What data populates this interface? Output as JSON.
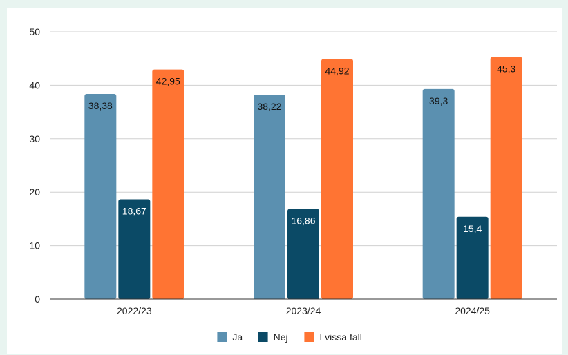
{
  "chart_data": {
    "type": "bar",
    "title": "",
    "xlabel": "",
    "ylabel": "",
    "ylim": [
      0,
      50
    ],
    "yticks": [
      0,
      10,
      20,
      30,
      40,
      50
    ],
    "grid": true,
    "legend_position": "bottom",
    "categories": [
      "2022/23",
      "2023/24",
      "2024/25"
    ],
    "series": [
      {
        "name": "Ja",
        "color": "#5b90b0",
        "values": [
          38.38,
          38.22,
          39.3
        ],
        "labels": [
          "38,38",
          "38,22",
          "39,3"
        ],
        "label_color": "#111111"
      },
      {
        "name": "Nej",
        "color": "#0b4a66",
        "values": [
          18.67,
          16.86,
          15.4
        ],
        "labels": [
          "18,67",
          "16,86",
          "15,4"
        ],
        "label_color": "#ffffff"
      },
      {
        "name": "I vissa fall",
        "color": "#ff7433",
        "values": [
          42.95,
          44.92,
          45.3
        ],
        "labels": [
          "42,95",
          "44,92",
          "45,3"
        ],
        "label_color": "#111111"
      }
    ]
  }
}
